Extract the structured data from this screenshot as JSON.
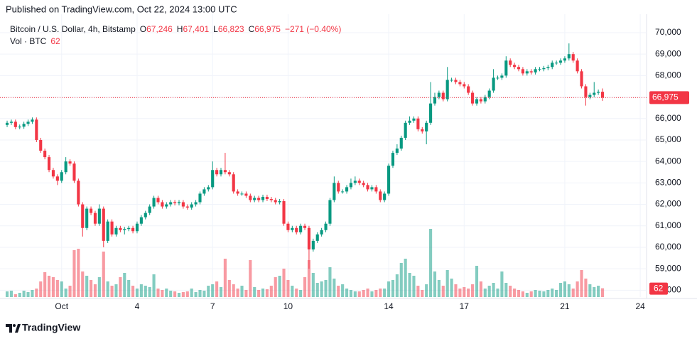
{
  "header": {
    "published": "Published on TradingView.com, Oct 22, 2024 13:00 UTC"
  },
  "footer": {
    "brand": "TradingView"
  },
  "chart_data": {
    "type": "candlestick",
    "legend": {
      "symbol": "Bitcoin / U.S. Dollar, 4h, Bitstamp",
      "open_key": "O",
      "open": "67,246",
      "high_key": "H",
      "high": "67,401",
      "low_key": "L",
      "low": "66,823",
      "close_key": "C",
      "close": "66,975",
      "change": "−271 (−0.40%)",
      "volume_name": "Vol · BTC"
    },
    "last_price_label": "66,975",
    "up_color": "#089981",
    "down_color": "#f23645",
    "xlim": [
      -1.7,
      152.5
    ],
    "xticks": [
      {
        "value": 13,
        "label": "Oct"
      },
      {
        "value": 31,
        "label": "4"
      },
      {
        "value": 49,
        "label": "7"
      },
      {
        "value": 67,
        "label": "10"
      },
      {
        "value": 91,
        "label": "14"
      },
      {
        "value": 109,
        "label": "17"
      },
      {
        "value": 133,
        "label": "21"
      },
      {
        "value": 151,
        "label": "24"
      }
    ],
    "ylim": [
      57680,
      70860
    ],
    "yticks": [
      {
        "value": 58000,
        "label": "58,000"
      },
      {
        "value": 59000,
        "label": "59,000"
      },
      {
        "value": 60000,
        "label": "60,000"
      },
      {
        "value": 61000,
        "label": "61,000"
      },
      {
        "value": 62000,
        "label": "62,000"
      },
      {
        "value": 63000,
        "label": "63,000"
      },
      {
        "value": 64000,
        "label": "64,000"
      },
      {
        "value": 65000,
        "label": "65,000"
      },
      {
        "value": 66000,
        "label": "66,000"
      },
      {
        "value": 67000,
        "label": "67,000"
      },
      {
        "value": 68000,
        "label": "68,000"
      },
      {
        "value": 69000,
        "label": "69,000"
      },
      {
        "value": 70000,
        "label": "70,000"
      }
    ],
    "grid": true,
    "open": [
      65700,
      65800,
      65850,
      65600,
      65620,
      65750,
      65850,
      65950,
      65000,
      64500,
      64200,
      63600,
      63300,
      63100,
      63500,
      64000,
      63900,
      63100,
      62000,
      60900,
      61800,
      61600,
      61100,
      61800,
      60300,
      61200,
      60600,
      60900,
      60800,
      60850,
      60900,
      60750,
      61100,
      61400,
      61600,
      61900,
      62300,
      62100,
      61900,
      62000,
      62100,
      62050,
      62100,
      61900,
      61850,
      62000,
      62100,
      62500,
      62700,
      62800,
      63600,
      63400,
      63600,
      63500,
      63400,
      62600,
      62500,
      62500,
      62400,
      62200,
      62300,
      62200,
      62350,
      62250,
      62200,
      62100,
      62150,
      61100,
      60800,
      60900,
      60700,
      61000,
      60900,
      59900,
      60300,
      60600,
      60800,
      61100,
      62200,
      63000,
      62600,
      62600,
      62800,
      63000,
      63100,
      63000,
      62900,
      62700,
      62800,
      62600,
      62200,
      62500,
      63800,
      64400,
      64600,
      65100,
      65800,
      65900,
      66000,
      65500,
      65400,
      65800,
      66700,
      67000,
      67200,
      66900,
      67800,
      67800,
      67700,
      67600,
      67500,
      67200,
      66700,
      66900,
      66800,
      67000,
      67300,
      67900,
      67900,
      68000,
      68700,
      68500,
      68400,
      68300,
      68100,
      68200,
      68150,
      68300,
      68300,
      68350,
      68400,
      68600,
      68600,
      68700,
      68800,
      69000,
      68700,
      68200,
      67500,
      67000,
      67100,
      67200,
      67246
    ],
    "high": [
      65900,
      65950,
      65950,
      65720,
      65850,
      65950,
      66050,
      66050,
      65100,
      64600,
      64300,
      63700,
      63400,
      63600,
      64200,
      64100,
      64000,
      63200,
      62100,
      61900,
      61900,
      61700,
      62000,
      61900,
      61300,
      61300,
      61000,
      61000,
      60950,
      61000,
      61000,
      61200,
      61500,
      61700,
      62000,
      62400,
      62400,
      62200,
      62100,
      62200,
      62200,
      62200,
      62200,
      62000,
      62100,
      62200,
      62600,
      62800,
      62900,
      64000,
      63700,
      63700,
      64400,
      63600,
      63500,
      62700,
      62600,
      62600,
      62500,
      62400,
      62400,
      62450,
      62450,
      62350,
      62300,
      62250,
      62250,
      61200,
      61000,
      61000,
      61100,
      61100,
      61000,
      60400,
      60700,
      60900,
      61200,
      62300,
      63300,
      63100,
      62700,
      62900,
      63200,
      63300,
      63200,
      63100,
      63000,
      62900,
      62900,
      62700,
      62600,
      63900,
      64500,
      64800,
      65200,
      65900,
      66100,
      66100,
      66100,
      65600,
      65900,
      67700,
      67200,
      67300,
      67300,
      68400,
      67900,
      67900,
      67800,
      67700,
      67600,
      67300,
      67000,
      67000,
      67100,
      67400,
      68300,
      68000,
      68100,
      68900,
      68800,
      68600,
      68500,
      68400,
      68300,
      68300,
      68400,
      68400,
      68450,
      68500,
      68700,
      68700,
      68800,
      68900,
      69500,
      69100,
      68800,
      68300,
      67600,
      67200,
      67700,
      67350,
      67401
    ],
    "low": [
      65600,
      65700,
      65500,
      65500,
      65520,
      65650,
      65750,
      64900,
      64400,
      64100,
      63500,
      63200,
      62900,
      63000,
      63400,
      63800,
      63000,
      61900,
      60500,
      60800,
      61500,
      61000,
      61000,
      60000,
      60200,
      60500,
      60500,
      60700,
      60600,
      60750,
      60650,
      60650,
      61000,
      61300,
      61500,
      61800,
      62000,
      61800,
      61800,
      61900,
      61950,
      61950,
      61800,
      61750,
      61750,
      61900,
      62000,
      62400,
      62600,
      62700,
      63300,
      63300,
      63400,
      63300,
      62500,
      62400,
      62400,
      62300,
      62100,
      62100,
      62100,
      62100,
      62150,
      62100,
      62000,
      62000,
      61000,
      60700,
      60700,
      60600,
      60600,
      60800,
      59000,
      59800,
      60200,
      60500,
      60700,
      61000,
      62100,
      62500,
      62500,
      62500,
      62700,
      62900,
      62900,
      62800,
      62600,
      62600,
      62500,
      62100,
      62100,
      62400,
      63700,
      64300,
      64500,
      65000,
      65700,
      65800,
      65400,
      65300,
      64800,
      65700,
      66600,
      66900,
      66800,
      66800,
      67700,
      67600,
      67500,
      67400,
      67100,
      66600,
      66600,
      66700,
      66700,
      66900,
      67200,
      67800,
      67800,
      67900,
      68400,
      68300,
      68200,
      68000,
      68000,
      68050,
      68050,
      68200,
      68200,
      68250,
      68300,
      68500,
      68500,
      68600,
      68700,
      68600,
      68100,
      67400,
      66600,
      66900,
      67000,
      67100,
      66823
    ],
    "close": [
      65800,
      65850,
      65600,
      65620,
      65750,
      65850,
      65950,
      65000,
      64500,
      64200,
      63600,
      63300,
      63100,
      63500,
      64000,
      63900,
      63100,
      62000,
      60900,
      61800,
      61600,
      61100,
      61800,
      60300,
      61200,
      60600,
      60900,
      60800,
      60850,
      60900,
      60750,
      61100,
      61400,
      61600,
      61900,
      62300,
      62100,
      61900,
      62000,
      62100,
      62050,
      62100,
      61900,
      61850,
      62000,
      62100,
      62500,
      62700,
      62800,
      63600,
      63400,
      63600,
      63500,
      63400,
      62600,
      62500,
      62500,
      62400,
      62200,
      62300,
      62200,
      62350,
      62250,
      62200,
      62100,
      62150,
      61100,
      60800,
      60900,
      60700,
      61000,
      60900,
      59900,
      60300,
      60600,
      60800,
      61100,
      62200,
      63000,
      62600,
      62600,
      62800,
      63000,
      63100,
      63000,
      62900,
      62700,
      62800,
      62600,
      62200,
      62500,
      63800,
      64400,
      64600,
      65100,
      65800,
      65900,
      66000,
      65500,
      65400,
      65800,
      66700,
      67000,
      67200,
      66900,
      67800,
      67800,
      67700,
      67600,
      67500,
      67200,
      66700,
      66900,
      66800,
      67000,
      67300,
      67900,
      67900,
      68000,
      68700,
      68500,
      68400,
      68300,
      68100,
      68200,
      68150,
      68300,
      68300,
      68350,
      68400,
      68600,
      68600,
      68700,
      68800,
      69000,
      68700,
      68200,
      67500,
      67000,
      67100,
      67200,
      67246,
      66975
    ],
    "volume": [
      40,
      45,
      20,
      30,
      45,
      35,
      50,
      60,
      110,
      175,
      150,
      140,
      120,
      110,
      60,
      80,
      330,
      340,
      180,
      150,
      120,
      90,
      140,
      320,
      110,
      80,
      90,
      140,
      170,
      120,
      80,
      60,
      90,
      80,
      70,
      160,
      60,
      50,
      60,
      45,
      40,
      30,
      35,
      40,
      60,
      35,
      50,
      45,
      80,
      90,
      110,
      70,
      270,
      120,
      90,
      60,
      80,
      50,
      260,
      70,
      50,
      60,
      55,
      80,
      140,
      150,
      200,
      120,
      80,
      60,
      50,
      140,
      260,
      170,
      100,
      110,
      120,
      210,
      130,
      80,
      90,
      60,
      50,
      40,
      40,
      50,
      60,
      40,
      50,
      60,
      60,
      110,
      120,
      160,
      240,
      270,
      170,
      150,
      80,
      50,
      90,
      480,
      180,
      120,
      80,
      190,
      130,
      90,
      60,
      70,
      60,
      90,
      220,
      110,
      60,
      80,
      100,
      60,
      180,
      100,
      80,
      60,
      50,
      40,
      30,
      40,
      50,
      45,
      40,
      50,
      60,
      50,
      100,
      110,
      90,
      60,
      110,
      190,
      130,
      90,
      70,
      80,
      62
    ]
  }
}
